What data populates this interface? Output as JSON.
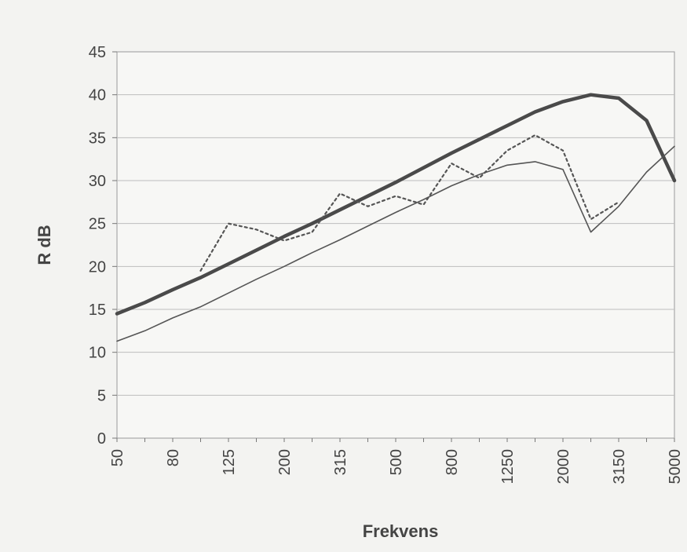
{
  "chart_data": {
    "type": "line",
    "xlabel": "Frekvens",
    "ylabel": "R dB",
    "ylim": [
      0,
      45
    ],
    "yticks": [
      0,
      5,
      10,
      15,
      20,
      25,
      30,
      35,
      40,
      45
    ],
    "x": [
      "50",
      "63",
      "80",
      "100",
      "125",
      "160",
      "200",
      "250",
      "315",
      "400",
      "500",
      "630",
      "800",
      "1000",
      "1250",
      "1600",
      "2000",
      "2500",
      "3150",
      "4000",
      "5000"
    ],
    "x_tick_labels": [
      "50",
      "80",
      "125",
      "200",
      "315",
      "500",
      "800",
      "1250",
      "2000",
      "3150",
      "5000"
    ],
    "grid": "horizontal",
    "series": [
      {
        "style": "thick-solid",
        "color": "#4a4a4a",
        "values": [
          14.5,
          15.8,
          17.3,
          18.7,
          20.3,
          21.9,
          23.5,
          25.0,
          26.6,
          28.2,
          29.8,
          31.5,
          33.2,
          34.8,
          36.4,
          38.0,
          39.2,
          40.0,
          39.6,
          37.0,
          30.0
        ]
      },
      {
        "style": "thin-solid",
        "color": "#555555",
        "values": [
          11.3,
          12.5,
          14.0,
          15.3,
          16.9,
          18.5,
          20.0,
          21.6,
          23.1,
          24.7,
          26.3,
          27.8,
          29.4,
          30.7,
          31.8,
          32.2,
          31.3,
          24.0,
          27.0,
          31.0,
          34.0
        ]
      },
      {
        "style": "dotted",
        "color": "#555555",
        "values": [
          null,
          null,
          null,
          19.5,
          25.0,
          24.3,
          23.0,
          24.0,
          28.5,
          27.0,
          28.2,
          27.2,
          32.0,
          30.3,
          33.5,
          35.3,
          33.5,
          25.5,
          27.5,
          null,
          null
        ]
      }
    ]
  }
}
